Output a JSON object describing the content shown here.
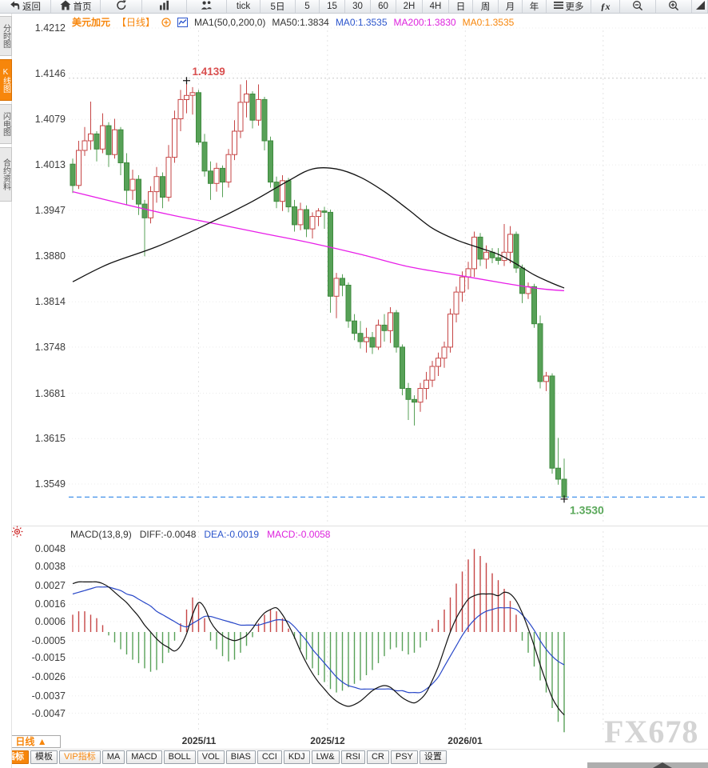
{
  "topbar": {
    "items": [
      {
        "name": "back",
        "label": "返回",
        "icon": "back"
      },
      {
        "name": "home",
        "label": "首页",
        "icon": "home"
      },
      {
        "name": "refresh",
        "icon": "refresh"
      },
      {
        "name": "chart-style",
        "icon": "bars"
      },
      {
        "name": "positions",
        "icon": "people"
      },
      {
        "name": "tick",
        "label": "tick"
      },
      {
        "name": "5d",
        "label": "5日"
      },
      {
        "name": "m5",
        "label": "5"
      },
      {
        "name": "m15",
        "label": "15"
      },
      {
        "name": "m30",
        "label": "30"
      },
      {
        "name": "m60",
        "label": "60"
      },
      {
        "name": "h2",
        "label": "2H"
      },
      {
        "name": "h4",
        "label": "4H"
      },
      {
        "name": "day",
        "label": "日"
      },
      {
        "name": "week",
        "label": "周"
      },
      {
        "name": "month",
        "label": "月"
      },
      {
        "name": "year",
        "label": "年"
      },
      {
        "name": "more",
        "label": "更多",
        "icon": "menu"
      },
      {
        "name": "fx",
        "label": "ƒx"
      },
      {
        "name": "zoom-out",
        "icon": "zoom-out"
      },
      {
        "name": "zoom-in",
        "icon": "zoom-in"
      },
      {
        "name": "draw",
        "icon": "wedge"
      }
    ]
  },
  "sidebar": {
    "tabs": [
      {
        "label": "分时图",
        "active": false
      },
      {
        "label": "K线图",
        "active": true
      },
      {
        "label": "闪电图",
        "active": false
      },
      {
        "label": "合约资料",
        "active": false
      }
    ]
  },
  "chart_header": {
    "symbol": "美元加元",
    "period": "【日线】",
    "ma_settings": "MA1(50,0,200,0)",
    "ma50": "MA50:1.3834",
    "ma0_blue": "MA0:1.3535",
    "ma200": "MA200:1.3830",
    "ma0_orange": "MA0:1.3535"
  },
  "macd_header": {
    "settings": "MACD(13,8,9)",
    "diff": "DIFF:-0.0048",
    "dea": "DEA:-0.0019",
    "macd": "MACD:-0.0058"
  },
  "footer": {
    "period_label": "日线 ▲",
    "buttons": [
      {
        "label": "指标",
        "style": "active"
      },
      {
        "label": "模板",
        "style": ""
      },
      {
        "label": "VIP指标",
        "style": "vip"
      },
      {
        "label": "MA",
        "style": ""
      },
      {
        "label": "MACD",
        "style": ""
      },
      {
        "label": "BOLL",
        "style": ""
      },
      {
        "label": "VOL",
        "style": ""
      },
      {
        "label": "BIAS",
        "style": ""
      },
      {
        "label": "CCI",
        "style": ""
      },
      {
        "label": "KDJ",
        "style": ""
      },
      {
        "label": "LW&",
        "style": ""
      },
      {
        "label": "RSI",
        "style": ""
      },
      {
        "label": "CR",
        "style": ""
      },
      {
        "label": "PSY",
        "style": ""
      },
      {
        "label": "设置",
        "style": ""
      }
    ]
  },
  "watermark": "FX678",
  "colors": {
    "accent_orange": "#f7860b",
    "up_red": "#c64545",
    "down_green": "#57a157",
    "down_green_border": "#3f8a3f",
    "ma50_black": "#111111",
    "ma200_magenta": "#e81ee8",
    "dea_blue": "#2847c8",
    "diff_black": "#111111",
    "price_line_blue": "#2e86e8",
    "high_label_red": "#d94f4f",
    "last_label_green": "#5aa85a",
    "gridline": "#ebebeb",
    "high_dotted_gray": "#c9c9c9"
  },
  "chart_data": [
    {
      "type": "candlestick",
      "title": "美元加元 日线",
      "y_ticks": [
        "1.4212",
        "1.4146",
        "1.4079",
        "1.4013",
        "1.3947",
        "1.3880",
        "1.3814",
        "1.3748",
        "1.3681",
        "1.3615",
        "1.3549"
      ],
      "x_labels": [
        "2025/11",
        "2025/12",
        "2026/01"
      ],
      "x_label_indices": [
        21,
        42.5,
        65.5
      ],
      "future_gridline_indices": [
        88.5
      ],
      "high_annotation": {
        "index": 19,
        "value": 1.4139,
        "label": "1.4139"
      },
      "last_annotation": {
        "index": 82,
        "value": 1.353,
        "label": "1.3530"
      },
      "current_price": 1.353,
      "candles_ohlc": [
        [
          1.4014,
          1.4022,
          1.3972,
          1.3983
        ],
        [
          1.3983,
          1.4048,
          1.3978,
          1.4034
        ],
        [
          1.4034,
          1.4068,
          1.4026,
          1.4048
        ],
        [
          1.4048,
          1.4105,
          1.4035,
          1.4058
        ],
        [
          1.4058,
          1.4062,
          1.4018,
          1.4036
        ],
        [
          1.4036,
          1.4088,
          1.403,
          1.407
        ],
        [
          1.407,
          1.4075,
          1.401,
          1.4028
        ],
        [
          1.4028,
          1.408,
          1.4022,
          1.4064
        ],
        [
          1.4064,
          1.4068,
          1.3998,
          1.4016
        ],
        [
          1.4016,
          1.403,
          1.3955,
          1.3976
        ],
        [
          1.3976,
          1.4006,
          1.3962,
          1.3992
        ],
        [
          1.3992,
          1.3998,
          1.394,
          1.3956
        ],
        [
          1.3956,
          1.3962,
          1.388,
          1.3936
        ],
        [
          1.3936,
          1.3982,
          1.3928,
          1.3974
        ],
        [
          1.3974,
          1.401,
          1.3958,
          1.3996
        ],
        [
          1.3996,
          1.4002,
          1.395,
          1.3966
        ],
        [
          1.3966,
          1.4042,
          1.396,
          1.4024
        ],
        [
          1.4024,
          1.4092,
          1.4016,
          1.408
        ],
        [
          1.408,
          1.4122,
          1.4062,
          1.4108
        ],
        [
          1.4108,
          1.4139,
          1.4088,
          1.4114
        ],
        [
          1.4114,
          1.4126,
          1.4086,
          1.4118
        ],
        [
          1.4118,
          1.4122,
          1.4042,
          1.4046
        ],
        [
          1.4046,
          1.4058,
          1.3996,
          1.4004
        ],
        [
          1.4004,
          1.4018,
          1.3962,
          1.3986
        ],
        [
          1.3986,
          1.4016,
          1.3974,
          1.4008
        ],
        [
          1.4008,
          1.4012,
          1.3966,
          1.3988
        ],
        [
          1.3988,
          1.4036,
          1.398,
          1.4028
        ],
        [
          1.4028,
          1.4078,
          1.402,
          1.4062
        ],
        [
          1.4062,
          1.413,
          1.4052,
          1.4104
        ],
        [
          1.4104,
          1.4136,
          1.4082,
          1.4116
        ],
        [
          1.4116,
          1.412,
          1.4066,
          1.4078
        ],
        [
          1.4078,
          1.413,
          1.407,
          1.4108
        ],
        [
          1.4108,
          1.4112,
          1.4034,
          1.4048
        ],
        [
          1.4048,
          1.4054,
          1.398,
          1.3988
        ],
        [
          1.3988,
          1.3996,
          1.395,
          1.396
        ],
        [
          1.396,
          1.3998,
          1.3946,
          1.399
        ],
        [
          1.399,
          1.3994,
          1.3944,
          1.3952
        ],
        [
          1.3952,
          1.3962,
          1.3916,
          1.3926
        ],
        [
          1.3926,
          1.3958,
          1.3918,
          1.3948
        ],
        [
          1.3948,
          1.3954,
          1.3908,
          1.392
        ],
        [
          1.392,
          1.3944,
          1.3906,
          1.3938
        ],
        [
          1.3938,
          1.395,
          1.3924,
          1.3946
        ],
        [
          1.3946,
          1.3952,
          1.392,
          1.3944
        ],
        [
          1.3944,
          1.3948,
          1.3798,
          1.3822
        ],
        [
          1.3822,
          1.3856,
          1.379,
          1.3848
        ],
        [
          1.3848,
          1.3854,
          1.3822,
          1.3838
        ],
        [
          1.3838,
          1.3842,
          1.3776,
          1.3786
        ],
        [
          1.3786,
          1.3796,
          1.3758,
          1.3768
        ],
        [
          1.3768,
          1.3786,
          1.3746,
          1.3756
        ],
        [
          1.3756,
          1.3776,
          1.374,
          1.3762
        ],
        [
          1.3762,
          1.377,
          1.3738,
          1.3748
        ],
        [
          1.3748,
          1.3788,
          1.3744,
          1.378
        ],
        [
          1.378,
          1.3796,
          1.3756,
          1.3772
        ],
        [
          1.3772,
          1.3806,
          1.3754,
          1.3798
        ],
        [
          1.3798,
          1.3802,
          1.374,
          1.3748
        ],
        [
          1.3748,
          1.3752,
          1.3678,
          1.3688
        ],
        [
          1.3688,
          1.3696,
          1.3642,
          1.3672
        ],
        [
          1.3672,
          1.3678,
          1.3634,
          1.3668
        ],
        [
          1.3668,
          1.3696,
          1.3654,
          1.3688
        ],
        [
          1.3688,
          1.3712,
          1.3672,
          1.37
        ],
        [
          1.37,
          1.3728,
          1.369,
          1.372
        ],
        [
          1.372,
          1.374,
          1.3706,
          1.3732
        ],
        [
          1.3732,
          1.3756,
          1.3718,
          1.3748
        ],
        [
          1.3748,
          1.3804,
          1.374,
          1.3796
        ],
        [
          1.3796,
          1.3836,
          1.3784,
          1.3828
        ],
        [
          1.3828,
          1.3858,
          1.3814,
          1.385
        ],
        [
          1.385,
          1.3872,
          1.3832,
          1.3862
        ],
        [
          1.3862,
          1.3916,
          1.385,
          1.3908
        ],
        [
          1.3908,
          1.3914,
          1.3866,
          1.3876
        ],
        [
          1.3876,
          1.3896,
          1.3862,
          1.3886
        ],
        [
          1.3886,
          1.3892,
          1.387,
          1.3878
        ],
        [
          1.3878,
          1.3892,
          1.3868,
          1.3874
        ],
        [
          1.3874,
          1.3927,
          1.3866,
          1.3886
        ],
        [
          1.3886,
          1.3924,
          1.387,
          1.3912
        ],
        [
          1.3912,
          1.3916,
          1.3856,
          1.3863
        ],
        [
          1.3863,
          1.3868,
          1.3812,
          1.3826
        ],
        [
          1.3826,
          1.3842,
          1.3818,
          1.3836
        ],
        [
          1.3836,
          1.384,
          1.3776,
          1.3782
        ],
        [
          1.3782,
          1.3794,
          1.3688,
          1.3698
        ],
        [
          1.3698,
          1.3712,
          1.3684,
          1.3706
        ],
        [
          1.3706,
          1.371,
          1.3564,
          1.3572
        ],
        [
          1.3572,
          1.3616,
          1.3548,
          1.3556
        ],
        [
          1.3556,
          1.3586,
          1.3528,
          1.353
        ]
      ],
      "ma50_points": [
        [
          0,
          1.3843
        ],
        [
          6,
          1.3869
        ],
        [
          14,
          1.3894
        ],
        [
          22,
          1.3925
        ],
        [
          30,
          1.396
        ],
        [
          36,
          1.399
        ],
        [
          40,
          1.4007
        ],
        [
          44,
          1.4007
        ],
        [
          48,
          1.3995
        ],
        [
          52,
          1.3974
        ],
        [
          56,
          1.3948
        ],
        [
          60,
          1.3921
        ],
        [
          64,
          1.3904
        ],
        [
          68,
          1.3892
        ],
        [
          71,
          1.3883
        ],
        [
          74,
          1.3869
        ],
        [
          77,
          1.3853
        ],
        [
          80,
          1.3841
        ],
        [
          82,
          1.3834
        ]
      ],
      "ma200_points": [
        [
          0,
          1.3974
        ],
        [
          8,
          1.3957
        ],
        [
          16,
          1.3941
        ],
        [
          24,
          1.3927
        ],
        [
          32,
          1.3913
        ],
        [
          40,
          1.3899
        ],
        [
          48,
          1.3883
        ],
        [
          56,
          1.3865
        ],
        [
          64,
          1.3853
        ],
        [
          72,
          1.3841
        ],
        [
          78,
          1.3833
        ],
        [
          82,
          1.383
        ]
      ]
    },
    {
      "type": "macd",
      "params": "MACD(13,8,9)",
      "y_ticks": [
        "0.0048",
        "0.0038",
        "0.0027",
        "0.0016",
        "0.0006",
        "-0.0005",
        "-0.0015",
        "-0.0026",
        "-0.0037",
        "-0.0047"
      ],
      "diff": [
        0.0028,
        0.0029,
        0.0029,
        0.0029,
        0.0029,
        0.0028,
        0.0026,
        0.0023,
        0.002,
        0.0017,
        0.0013,
        0.0009,
        0.0004,
        0.0,
        -0.0004,
        -0.0007,
        -0.0009,
        -0.0011,
        -0.0008,
        -0.0001,
        0.001,
        0.0017,
        0.0014,
        0.0006,
        0.0001,
        -0.0002,
        -0.0004,
        -0.0005,
        -0.0004,
        -0.0002,
        0.0002,
        0.0007,
        0.0011,
        0.0013,
        0.0014,
        0.001,
        0.0004,
        -0.0003,
        -0.0011,
        -0.0018,
        -0.0024,
        -0.0029,
        -0.0033,
        -0.0037,
        -0.004,
        -0.0042,
        -0.0043,
        -0.0042,
        -0.004,
        -0.0037,
        -0.0034,
        -0.0032,
        -0.0031,
        -0.0032,
        -0.0035,
        -0.0038,
        -0.004,
        -0.0041,
        -0.0039,
        -0.0035,
        -0.0028,
        -0.002,
        -0.001,
        0.0,
        0.0008,
        0.0014,
        0.0019,
        0.0021,
        0.0022,
        0.0022,
        0.0022,
        0.0021,
        0.0023,
        0.0022,
        0.0018,
        0.0011,
        0.0002,
        -0.0008,
        -0.0019,
        -0.0029,
        -0.0038,
        -0.0044,
        -0.0048
      ],
      "dea": [
        0.0022,
        0.0023,
        0.0024,
        0.0025,
        0.0026,
        0.0026,
        0.0026,
        0.0025,
        0.0024,
        0.0022,
        0.0021,
        0.0019,
        0.0017,
        0.0015,
        0.0012,
        0.001,
        0.0008,
        0.0006,
        0.0004,
        0.0003,
        0.0005,
        0.0007,
        0.0009,
        0.0009,
        0.0008,
        0.0007,
        0.0006,
        0.0005,
        0.0004,
        0.0004,
        0.0004,
        0.0004,
        0.0005,
        0.0006,
        0.0007,
        0.0007,
        0.0006,
        0.0003,
        -0.0001,
        -0.0005,
        -0.001,
        -0.0014,
        -0.0018,
        -0.0022,
        -0.0026,
        -0.0029,
        -0.0031,
        -0.0032,
        -0.0033,
        -0.0033,
        -0.0033,
        -0.0033,
        -0.0033,
        -0.0033,
        -0.0034,
        -0.0034,
        -0.0035,
        -0.0035,
        -0.0035,
        -0.0033,
        -0.003,
        -0.0026,
        -0.002,
        -0.0014,
        -0.0008,
        -0.0002,
        0.0003,
        0.0007,
        0.001,
        0.0012,
        0.0013,
        0.0014,
        0.0014,
        0.0014,
        0.0013,
        0.001,
        0.0006,
        0.0001,
        -0.0005,
        -0.001,
        -0.0014,
        -0.0017,
        -0.0019
      ],
      "histogram": [
        0.001,
        0.0012,
        0.0012,
        0.001,
        0.0008,
        0.0004,
        -0.0002,
        -0.0006,
        -0.001,
        -0.0013,
        -0.0016,
        -0.0018,
        -0.0021,
        -0.0023,
        -0.0022,
        -0.0018,
        -0.0012,
        -0.0005,
        0.0005,
        0.0013,
        0.002,
        0.0016,
        0.0008,
        -0.0005,
        -0.001,
        -0.0014,
        -0.0017,
        -0.0016,
        -0.0012,
        -0.0008,
        -0.0003,
        0.0005,
        0.001,
        0.0013,
        0.0012,
        0.0008,
        0.0002,
        -0.0004,
        -0.001,
        -0.0016,
        -0.0021,
        -0.0025,
        -0.0029,
        -0.0033,
        -0.0035,
        -0.0034,
        -0.0032,
        -0.003,
        -0.0028,
        -0.0025,
        -0.0022,
        -0.0018,
        -0.0014,
        -0.001,
        -0.0009,
        -0.0011,
        -0.0013,
        -0.0012,
        -0.0009,
        -0.0005,
        0.0002,
        0.0007,
        0.0013,
        0.002,
        0.0028,
        0.0035,
        0.0042,
        0.0048,
        0.0044,
        0.004,
        0.0034,
        0.003,
        0.0025,
        0.0018,
        0.001,
        -0.0005,
        -0.0012,
        -0.002,
        -0.0028,
        -0.0035,
        -0.0044,
        -0.0052,
        -0.0058
      ]
    }
  ]
}
